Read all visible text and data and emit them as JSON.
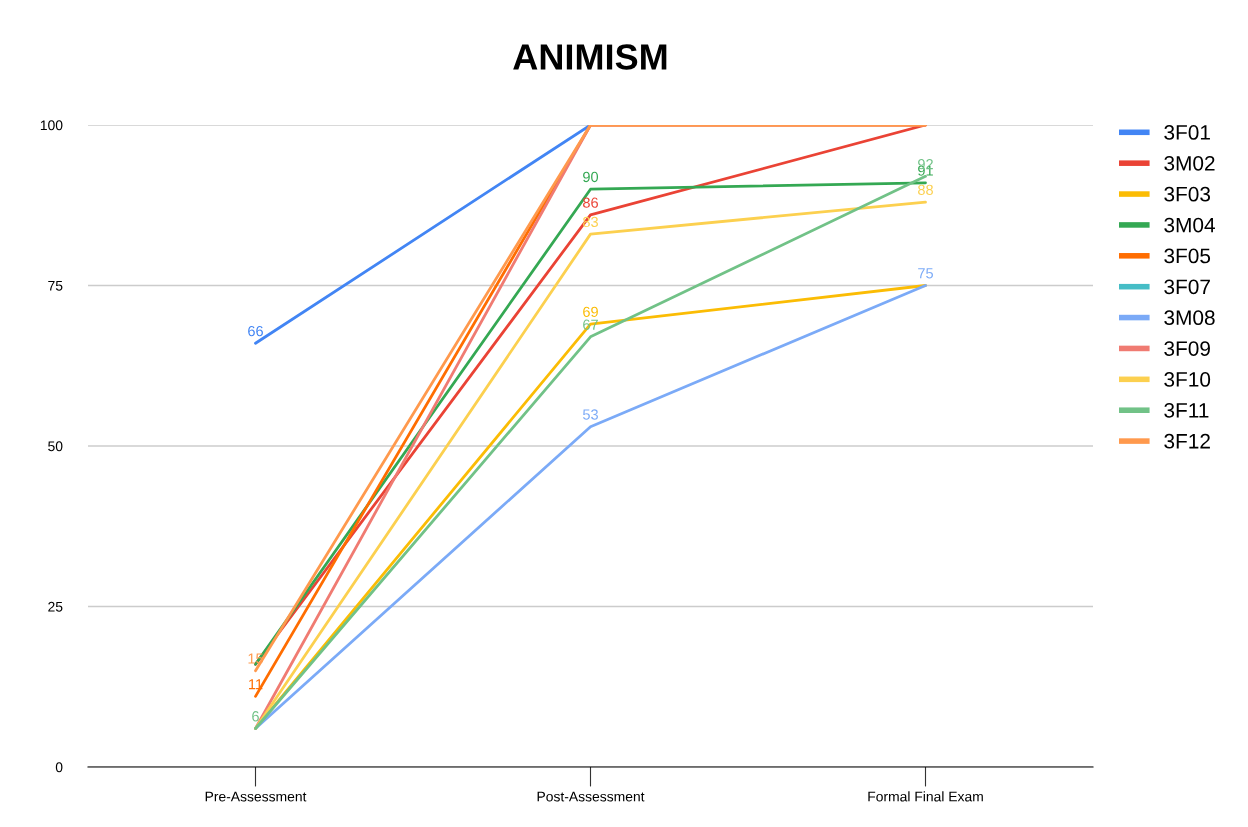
{
  "chart_data": {
    "type": "line",
    "title": "ANIMISM",
    "categories": [
      "Pre-Assessment",
      "Post-Assessment",
      "Formal Final Exam"
    ],
    "series": [
      {
        "name": "3F01",
        "color": "#4285f4",
        "values": [
          66,
          100,
          null
        ],
        "value_labels": [
          "66",
          null,
          null
        ]
      },
      {
        "name": "3M02",
        "color": "#ea4335",
        "values": [
          16,
          86,
          100
        ],
        "value_labels": [
          null,
          "86",
          null
        ]
      },
      {
        "name": "3F03",
        "color": "#fbbc04",
        "values": [
          6,
          69,
          75
        ],
        "value_labels": [
          null,
          "69",
          null
        ]
      },
      {
        "name": "3M04",
        "color": "#34a853",
        "values": [
          16,
          90,
          91
        ],
        "value_labels": [
          null,
          "90",
          "91"
        ]
      },
      {
        "name": "3F05",
        "color": "#ff6d01",
        "values": [
          11,
          100,
          100
        ],
        "value_labels": [
          "11",
          null,
          null
        ]
      },
      {
        "name": "3F07",
        "color": "#46bdc6",
        "values": [
          null,
          null,
          null
        ]
      },
      {
        "name": "3M08",
        "color": "#7baaf7",
        "values": [
          6,
          53,
          75
        ],
        "value_labels": [
          null,
          "53",
          "75"
        ]
      },
      {
        "name": "3F09",
        "color": "#f07b72",
        "values": [
          6,
          100,
          100
        ]
      },
      {
        "name": "3F10",
        "color": "#fcd04f",
        "values": [
          6,
          83,
          88
        ],
        "value_labels": [
          null,
          "83",
          "88"
        ]
      },
      {
        "name": "3F11",
        "color": "#71c287",
        "values": [
          6,
          67,
          92
        ],
        "value_labels": [
          "6",
          "67",
          "92"
        ]
      },
      {
        "name": "3F12",
        "color": "#ff994d",
        "values": [
          15,
          100,
          100
        ],
        "value_labels": [
          "15",
          null,
          null
        ]
      }
    ],
    "ylim": [
      0,
      100
    ],
    "yticks": [
      0,
      25,
      50,
      75,
      100
    ],
    "grid": "y",
    "legend": "right",
    "marker": "none",
    "line_style": "solid"
  }
}
